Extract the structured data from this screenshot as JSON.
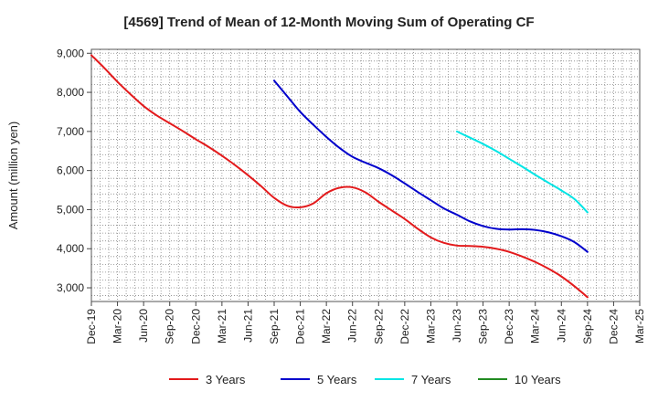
{
  "chart_data": {
    "type": "line",
    "title": "[4569]  Trend of Mean of 12-Month Moving Sum of Operating CF",
    "xlabel": "",
    "ylabel": "Amount (million yen)",
    "ylim": [
      2650,
      9100
    ],
    "yticks": [
      3000,
      4000,
      5000,
      6000,
      7000,
      8000,
      9000
    ],
    "ytick_labels": [
      "3,000",
      "4,000",
      "5,000",
      "6,000",
      "7,000",
      "8,000",
      "9,000"
    ],
    "categories": [
      "Dec-19",
      "Mar-20",
      "Jun-20",
      "Sep-20",
      "Dec-20",
      "Mar-21",
      "Jun-21",
      "Sep-21",
      "Dec-21",
      "Mar-22",
      "Jun-22",
      "Sep-22",
      "Dec-22",
      "Mar-23",
      "Jun-23",
      "Sep-23",
      "Dec-23",
      "Mar-24",
      "Jun-24",
      "Sep-24",
      "Dec-24",
      "Mar-25"
    ],
    "grid": true,
    "legend_position": "bottom",
    "series": [
      {
        "name": "3 Years",
        "color": "#e31a1c",
        "x": [
          0,
          0.5,
          1,
          1.5,
          2,
          2.5,
          3,
          3.5,
          4,
          4.5,
          5,
          5.5,
          6,
          6.5,
          7,
          7.5,
          8,
          8.5,
          9,
          9.5,
          10,
          10.5,
          11,
          11.5,
          12,
          12.5,
          13,
          13.5,
          14,
          14.5,
          15,
          15.5,
          16,
          16.5,
          17,
          17.5,
          18,
          18.5,
          19
        ],
        "values": [
          8950,
          8620,
          8270,
          7950,
          7650,
          7410,
          7210,
          7010,
          6800,
          6600,
          6380,
          6140,
          5880,
          5600,
          5300,
          5100,
          5060,
          5160,
          5420,
          5560,
          5570,
          5440,
          5200,
          4980,
          4760,
          4510,
          4290,
          4150,
          4080,
          4070,
          4050,
          4000,
          3920,
          3800,
          3660,
          3490,
          3290,
          3040,
          2760
        ]
      },
      {
        "name": "5 Years",
        "color": "#0000cc",
        "x": [
          7,
          7.5,
          8,
          8.5,
          9,
          9.5,
          10,
          10.5,
          11,
          11.5,
          12,
          12.5,
          13,
          13.5,
          14,
          14.5,
          15,
          15.5,
          16,
          16.5,
          17,
          17.5,
          18,
          18.5,
          19
        ],
        "values": [
          8300,
          7900,
          7500,
          7170,
          6860,
          6580,
          6350,
          6200,
          6060,
          5880,
          5670,
          5450,
          5240,
          5030,
          4870,
          4700,
          4580,
          4510,
          4490,
          4500,
          4480,
          4420,
          4320,
          4170,
          3920
        ]
      },
      {
        "name": "7 Years",
        "color": "#00e5e5",
        "x": [
          14,
          14.5,
          15,
          15.5,
          16,
          16.5,
          17,
          17.5,
          18,
          18.5,
          19
        ],
        "values": [
          7000,
          6840,
          6680,
          6500,
          6300,
          6100,
          5890,
          5690,
          5490,
          5270,
          4930
        ]
      },
      {
        "name": "10 Years",
        "color": "#228b22",
        "x": [],
        "values": []
      }
    ]
  }
}
